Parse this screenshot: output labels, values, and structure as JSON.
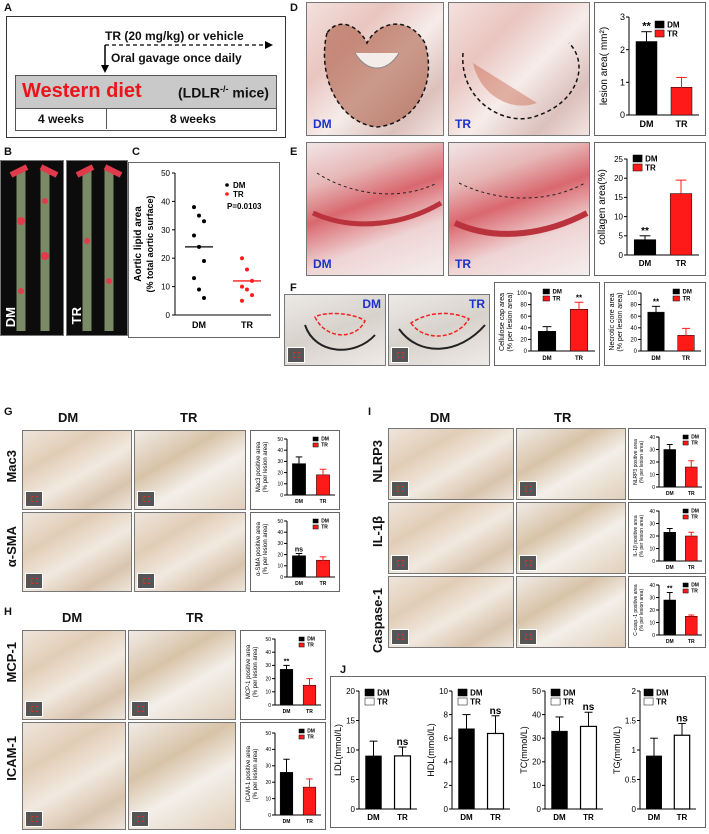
{
  "panels": {
    "A": {
      "letter": "A",
      "treatment": "TR (20 mg/kg) or vehicle",
      "gavage": "Oral gavage once daily",
      "diet": "Western diet",
      "mice": "(LDLR",
      "mice_sup": "-/-",
      "mice_end": " mice)",
      "period1": "4 weeks",
      "period2": "8 weeks"
    },
    "B": {
      "letter": "B",
      "dm": "DM",
      "tr": "TR"
    },
    "C": {
      "letter": "C",
      "ylabel1": "Aortic lipid area",
      "ylabel2": "(% total aortic surface)",
      "pval": "P=0.0103"
    },
    "D": {
      "letter": "D",
      "dm": "DM",
      "tr": "TR"
    },
    "E": {
      "letter": "E",
      "dm": "DM",
      "tr": "TR"
    },
    "F": {
      "letter": "F",
      "dm": "DM",
      "tr": "TR"
    },
    "G": {
      "letter": "G",
      "dm": "DM",
      "tr": "TR",
      "row1": "Mac3",
      "row2": "α-SMA"
    },
    "H": {
      "letter": "H",
      "dm": "DM",
      "tr": "TR",
      "row1": "MCP-1",
      "row2": "ICAM-1"
    },
    "I": {
      "letter": "I",
      "dm": "DM",
      "tr": "TR",
      "row1": "NLRP3",
      "row2": "IL-1β",
      "row3": "Caspase-1"
    },
    "J": {
      "letter": "J"
    }
  },
  "colors": {
    "dm": "#000000",
    "tr": "#ff1a1a",
    "diet": "#e8161b",
    "tag": "#1a33c8"
  },
  "chart_data": [
    {
      "id": "C",
      "type": "scatter",
      "categories": [
        "DM",
        "TR"
      ],
      "series": [
        {
          "name": "DM",
          "values": [
            38,
            35,
            33,
            28,
            24,
            19,
            13,
            9,
            6
          ],
          "mean": 24
        },
        {
          "name": "TR",
          "values": [
            20,
            16,
            12,
            10,
            9,
            7,
            5
          ],
          "mean": 12
        }
      ],
      "ylim": [
        0,
        50
      ],
      "yticks": [
        0,
        10,
        20,
        30,
        40,
        50
      ],
      "annotation": "P=0.0103"
    },
    {
      "id": "D",
      "type": "bar",
      "ylabel": "lesion area( mm²)",
      "categories": [
        "DM",
        "TR"
      ],
      "values": [
        2.25,
        0.85
      ],
      "errors": [
        0.3,
        0.3
      ],
      "sig": [
        "**",
        ""
      ],
      "ylim": [
        0,
        3
      ],
      "yticks": [
        0,
        1,
        2,
        3
      ]
    },
    {
      "id": "E",
      "type": "bar",
      "ylabel": "collagen area(%)",
      "categories": [
        "DM",
        "TR"
      ],
      "values": [
        4,
        16
      ],
      "errors": [
        1,
        3.5
      ],
      "sig": [
        "**",
        ""
      ],
      "ylim": [
        0,
        25
      ],
      "yticks": [
        0,
        5,
        10,
        15,
        20,
        25
      ]
    },
    {
      "id": "F1",
      "type": "bar",
      "ylabel": "Cellulose cap area",
      "ylabel2": "(% per lesion area)",
      "categories": [
        "DM",
        "TR"
      ],
      "values": [
        34,
        72
      ],
      "errors": [
        8,
        12
      ],
      "sig": [
        "",
        "**"
      ],
      "ylim": [
        0,
        100
      ],
      "yticks": [
        0,
        20,
        40,
        60,
        80,
        100
      ]
    },
    {
      "id": "F2",
      "type": "bar",
      "ylabel": "Necrotic core area",
      "ylabel2": "(% per lesion area)",
      "categories": [
        "DM",
        "TR"
      ],
      "values": [
        67,
        27
      ],
      "errors": [
        10,
        12
      ],
      "sig": [
        "**",
        ""
      ],
      "ylim": [
        0,
        100
      ],
      "yticks": [
        0,
        20,
        40,
        60,
        80,
        100
      ]
    },
    {
      "id": "G1",
      "type": "bar",
      "ylabel": "Mac3 positive area",
      "ylabel2": "(% per lesion area)",
      "categories": [
        "DM",
        "TR"
      ],
      "values": [
        28,
        18
      ],
      "errors": [
        6,
        5
      ],
      "sig": [
        "",
        ""
      ],
      "ylim": [
        0,
        50
      ],
      "yticks": [
        0,
        10,
        20,
        30,
        40,
        50
      ]
    },
    {
      "id": "G2",
      "type": "bar",
      "ylabel": "α-SMA positive area",
      "ylabel2": "(% per lesion area)",
      "categories": [
        "DM",
        "TR"
      ],
      "values": [
        19,
        15
      ],
      "errors": [
        2,
        3
      ],
      "sig": [
        "ns",
        ""
      ],
      "ylim": [
        0,
        50
      ],
      "yticks": [
        0,
        10,
        20,
        30,
        40,
        50
      ]
    },
    {
      "id": "H1",
      "type": "bar",
      "ylabel": "MCP-1 positive area",
      "ylabel2": "(% per lesion area)",
      "categories": [
        "DM",
        "TR"
      ],
      "values": [
        27,
        15
      ],
      "errors": [
        3,
        5
      ],
      "sig": [
        "**",
        ""
      ],
      "ylim": [
        0,
        50
      ],
      "yticks": [
        0,
        10,
        20,
        30,
        40,
        50
      ]
    },
    {
      "id": "H2",
      "type": "bar",
      "ylabel": "ICAM-1 positive area",
      "ylabel2": "(% per lesion area)",
      "categories": [
        "DM",
        "TR"
      ],
      "values": [
        26,
        17
      ],
      "errors": [
        8,
        5
      ],
      "sig": [
        "",
        ""
      ],
      "ylim": [
        0,
        50
      ],
      "yticks": [
        0,
        10,
        20,
        30,
        40,
        50
      ]
    },
    {
      "id": "I1",
      "type": "bar",
      "ylabel": "NLRP3 positive area",
      "ylabel2": "(% per lesion area)",
      "categories": [
        "DM",
        "TR"
      ],
      "values": [
        30,
        16
      ],
      "errors": [
        4,
        5
      ],
      "sig": [
        "",
        ""
      ],
      "ylim": [
        0,
        40
      ],
      "yticks": [
        0,
        10,
        20,
        30,
        40
      ]
    },
    {
      "id": "I2",
      "type": "bar",
      "ylabel": "IL-1β positive area",
      "ylabel2": "(% per lesion area)",
      "categories": [
        "DM",
        "TR"
      ],
      "values": [
        23,
        20
      ],
      "errors": [
        3,
        3
      ],
      "sig": [
        "",
        ""
      ],
      "ylim": [
        0,
        40
      ],
      "yticks": [
        0,
        10,
        20,
        30,
        40
      ]
    },
    {
      "id": "I3",
      "type": "bar",
      "ylabel": "C-casp.-1 positive area",
      "ylabel2": "(% per lesion area)",
      "categories": [
        "DM",
        "TR"
      ],
      "values": [
        28,
        15
      ],
      "errors": [
        6,
        1
      ],
      "sig": [
        "**",
        ""
      ],
      "ylim": [
        0,
        40
      ],
      "yticks": [
        0,
        10,
        20,
        30,
        40
      ]
    },
    {
      "id": "J1",
      "type": "bar",
      "ylabel": "LDL(mmol/L)",
      "categories": [
        "DM",
        "TR"
      ],
      "values": [
        9,
        9
      ],
      "errors": [
        2.5,
        1.5
      ],
      "sig": [
        "",
        "ns"
      ],
      "ylim": [
        0,
        20
      ],
      "yticks": [
        0,
        5,
        10,
        15,
        20
      ]
    },
    {
      "id": "J2",
      "type": "bar",
      "ylabel": "HDL(mmol/L)",
      "categories": [
        "DM",
        "TR"
      ],
      "values": [
        6.8,
        6.4
      ],
      "errors": [
        1.2,
        1.5
      ],
      "sig": [
        "",
        "ns"
      ],
      "ylim": [
        0,
        10
      ],
      "yticks": [
        0,
        2,
        4,
        6,
        8,
        10
      ]
    },
    {
      "id": "J3",
      "type": "bar",
      "ylabel": "TC(mmol/L)",
      "categories": [
        "DM",
        "TR"
      ],
      "values": [
        33,
        35
      ],
      "errors": [
        6,
        6
      ],
      "sig": [
        "",
        "ns"
      ],
      "ylim": [
        0,
        50
      ],
      "yticks": [
        0,
        10,
        20,
        30,
        40,
        50
      ]
    },
    {
      "id": "J4",
      "type": "bar",
      "ylabel": "TG(mmol/L)",
      "categories": [
        "DM",
        "TR"
      ],
      "values": [
        0.9,
        1.25
      ],
      "errors": [
        0.3,
        0.2
      ],
      "sig": [
        "",
        "ns"
      ],
      "ylim": [
        0,
        2
      ],
      "yticks": [
        0.0,
        0.5,
        1.0,
        1.5,
        2.0
      ]
    }
  ]
}
